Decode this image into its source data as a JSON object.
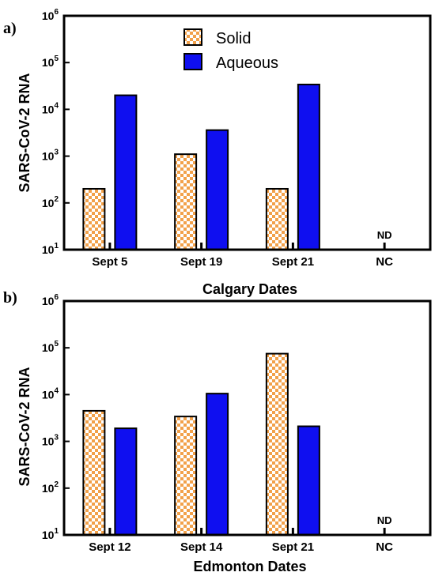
{
  "colors": {
    "solid_pattern_a": "#f2a14a",
    "solid_pattern_b": "#ffffff",
    "aqueous": "#0f0ff0",
    "axis": "#000000"
  },
  "chart_data": [
    {
      "panel_label": "a)",
      "type": "bar",
      "scale": "log",
      "categories": [
        "Sept 5",
        "Sept 19",
        "Sept 21",
        "NC"
      ],
      "series": [
        {
          "name": "Solid",
          "values": [
            200,
            1100,
            200,
            null
          ]
        },
        {
          "name": "Aqueous",
          "values": [
            20000,
            3600,
            34000,
            null
          ]
        }
      ],
      "annotations": [
        {
          "category": "NC",
          "text": "ND"
        }
      ],
      "xlabel": "Calgary Dates",
      "ylabel": "SARS-CoV-2 RNA",
      "ylim": [
        10,
        1000000
      ],
      "yticks": [
        {
          "base": "10",
          "exp": "1"
        },
        {
          "base": "10",
          "exp": "2"
        },
        {
          "base": "10",
          "exp": "3"
        },
        {
          "base": "10",
          "exp": "4"
        },
        {
          "base": "10",
          "exp": "5"
        },
        {
          "base": "10",
          "exp": "6"
        }
      ],
      "legend": {
        "placement": "top-center",
        "show": true
      }
    },
    {
      "panel_label": "b)",
      "type": "bar",
      "scale": "log",
      "categories": [
        "Sept 12",
        "Sept 14",
        "Sept 21",
        "NC"
      ],
      "series": [
        {
          "name": "Solid",
          "values": [
            4500,
            3400,
            75000,
            null
          ]
        },
        {
          "name": "Aqueous",
          "values": [
            1900,
            10500,
            2100,
            null
          ]
        }
      ],
      "annotations": [
        {
          "category": "NC",
          "text": "ND"
        }
      ],
      "xlabel": "Edmonton Dates",
      "ylabel": "SARS-CoV-2 RNA",
      "ylim": [
        10,
        1000000
      ],
      "yticks": [
        {
          "base": "10",
          "exp": "1"
        },
        {
          "base": "10",
          "exp": "2"
        },
        {
          "base": "10",
          "exp": "3"
        },
        {
          "base": "10",
          "exp": "4"
        },
        {
          "base": "10",
          "exp": "5"
        },
        {
          "base": "10",
          "exp": "6"
        }
      ],
      "legend": {
        "show": false
      }
    }
  ]
}
